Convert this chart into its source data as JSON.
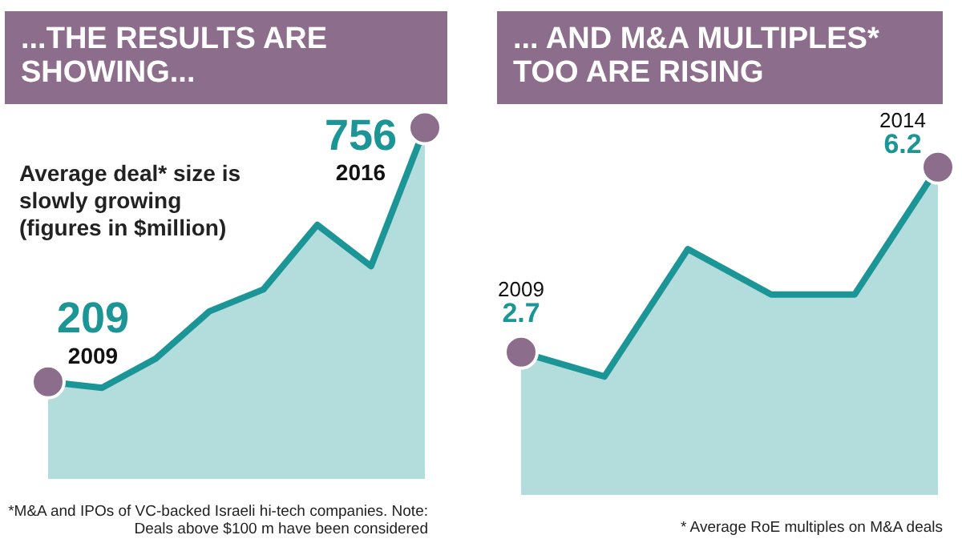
{
  "chart_data": [
    {
      "type": "area",
      "title": "...THE RESULTS ARE SHOWING...",
      "subtitle": "Average deal* size is slowly growing (figures in $million)",
      "categories": [
        null,
        null,
        null,
        null,
        null,
        null,
        null,
        null
      ],
      "tick_labels": false,
      "series": [
        {
          "color": "#1b9595",
          "values": [
            209,
            196,
            259,
            361,
            408,
            547,
            458,
            756
          ],
          "value_labels": [
            "209",
            null,
            null,
            null,
            null,
            null,
            null,
            "756"
          ]
        }
      ],
      "annotations": [
        "2009",
        "2016",
        "*M&A and IPOs of VC-backed Israeli hi-tech companies. Note: Deals above $100 m have been considered"
      ]
    },
    {
      "type": "area",
      "title": "... AND M&A MULTIPLES* TOO ARE RISING",
      "categories": [
        null,
        null,
        null,
        null,
        null,
        null
      ],
      "tick_labels": false,
      "series": [
        {
          "color": "#1b9595",
          "values": [
            2.7,
            2.24,
            4.65,
            3.79,
            3.79,
            6.2
          ],
          "value_labels": [
            "2.7",
            null,
            null,
            null,
            null,
            "6.2"
          ]
        }
      ],
      "annotations": [
        "2009",
        "2014",
        "* Average RoE multiples on M&A deals"
      ]
    }
  ]
}
